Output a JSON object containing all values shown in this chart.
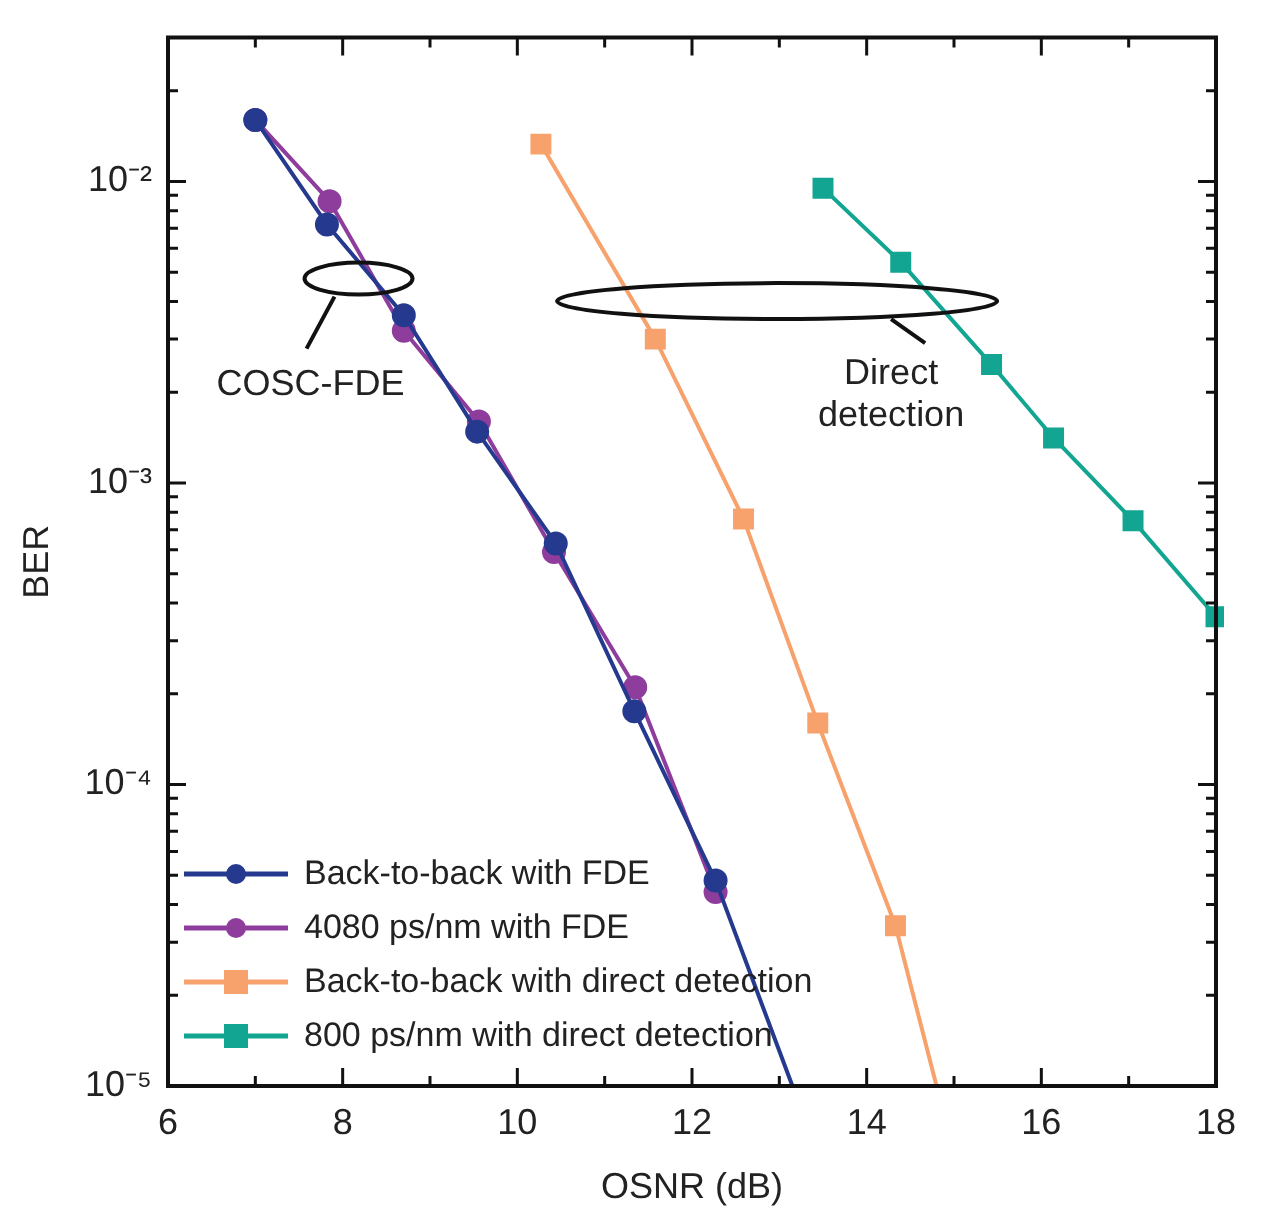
{
  "chart_data": {
    "type": "line",
    "xlabel": "OSNR (dB)",
    "ylabel": "BER",
    "log": "y",
    "grid": false,
    "legend": "bottom left",
    "line_style": "solid",
    "xlim": [
      6,
      18
    ],
    "xticks": [
      6,
      {
        "value": 7,
        "label": null
      },
      8,
      {
        "value": 9,
        "label": null
      },
      10,
      {
        "value": 11,
        "label": null
      },
      12,
      {
        "value": 13,
        "label": null
      },
      14,
      {
        "value": 15,
        "label": null
      },
      16,
      {
        "value": 17,
        "label": null
      },
      18
    ],
    "ylim": [
      1e-05,
      0.03
    ],
    "yticks": [
      {
        "value": 1e-05,
        "label": "10⁻⁵"
      },
      {
        "value": 2e-05,
        "label": null
      },
      {
        "value": 3e-05,
        "label": null
      },
      {
        "value": 4e-05,
        "label": null
      },
      {
        "value": 5e-05,
        "label": null
      },
      {
        "value": 6e-05,
        "label": null
      },
      {
        "value": 7e-05,
        "label": null
      },
      {
        "value": 8e-05,
        "label": null
      },
      {
        "value": 9e-05,
        "label": null
      },
      {
        "value": 0.0001,
        "label": "10⁻⁴"
      },
      {
        "value": 0.0002,
        "label": null
      },
      {
        "value": 0.0003,
        "label": null
      },
      {
        "value": 0.0004,
        "label": null
      },
      {
        "value": 0.0005,
        "label": null
      },
      {
        "value": 0.0006,
        "label": null
      },
      {
        "value": 0.0007,
        "label": null
      },
      {
        "value": 0.0008,
        "label": null
      },
      {
        "value": 0.0009,
        "label": null
      },
      {
        "value": 0.001,
        "label": "10⁻³"
      },
      {
        "value": 0.002,
        "label": null
      },
      {
        "value": 0.003,
        "label": null
      },
      {
        "value": 0.004,
        "label": null
      },
      {
        "value": 0.005,
        "label": null
      },
      {
        "value": 0.006,
        "label": null
      },
      {
        "value": 0.007,
        "label": null
      },
      {
        "value": 0.008,
        "label": null
      },
      {
        "value": 0.009,
        "label": null
      },
      {
        "value": 0.01,
        "label": "10⁻²"
      },
      {
        "value": 0.02,
        "label": null
      },
      {
        "value": 0.03,
        "label": null
      }
    ],
    "series": [
      {
        "name": "Back-to-back with FDE",
        "color": "#253a8e",
        "marker": "circle",
        "x": [
          7.0,
          7.82,
          8.7,
          9.54,
          10.44,
          11.34,
          12.27,
          13.15
        ],
        "values": [
          0.016,
          0.0072,
          0.0036,
          0.00148,
          0.00063,
          0.000175,
          4.8e-05,
          1e-05
        ]
      },
      {
        "name": "4080 ps/nm with FDE",
        "color": "#8e3d9c",
        "marker": "circle",
        "x": [
          7.0,
          7.85,
          8.7,
          9.56,
          10.42,
          11.35,
          12.27
        ],
        "values": [
          0.016,
          0.0086,
          0.0032,
          0.0016,
          0.00059,
          0.00021,
          4.4e-05
        ]
      },
      {
        "name": "Back-to-back with direct detection",
        "color": "#f7a26c",
        "marker": "square",
        "x": [
          10.27,
          11.58,
          12.59,
          13.44,
          14.33,
          14.8
        ],
        "values": [
          0.0133,
          0.003,
          0.00076,
          0.00016,
          3.4e-05,
          1e-05
        ]
      },
      {
        "name": "800 ps/nm with direct detection",
        "color": "#12a591",
        "marker": "square",
        "x": [
          13.5,
          14.39,
          15.43,
          16.14,
          17.05,
          18.0
        ],
        "values": [
          0.0095,
          0.0054,
          0.00247,
          0.00141,
          0.00075,
          0.00036
        ]
      }
    ],
    "annotations": [
      "COSC-FDE",
      "Direct\ndetection"
    ]
  }
}
